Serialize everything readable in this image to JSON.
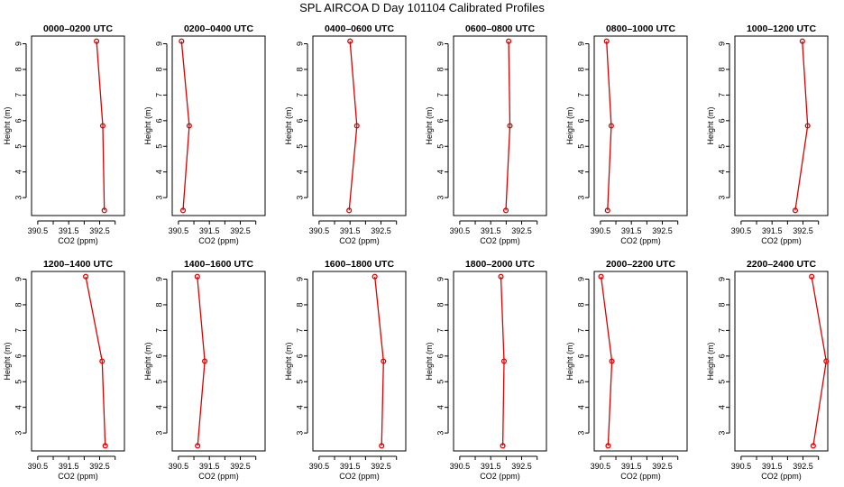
{
  "title": "SPL AIRCOA D  Day 101104  Calibrated Profiles",
  "chart_data": {
    "type": "line",
    "xlabel": "CO2 (ppm)",
    "ylabel": "Height (m)",
    "xlim": [
      390.3,
      393.3
    ],
    "ylim": [
      2.3,
      9.3
    ],
    "xticks": [
      390.5,
      391.0,
      391.5,
      392.0,
      392.5,
      393.0
    ],
    "xtick_labels": [
      "390.5",
      "391.5",
      "392.5"
    ],
    "yticks": [
      3,
      4,
      5,
      6,
      7,
      8,
      9
    ],
    "heights": [
      9.1,
      5.8,
      2.5
    ],
    "line_color": "#dd0000",
    "panels": [
      {
        "title": "0000–0200 UTC",
        "co2": [
          392.4,
          392.6,
          392.65
        ]
      },
      {
        "title": "0200–0400 UTC",
        "co2": [
          390.6,
          390.85,
          390.65
        ]
      },
      {
        "title": "0400–0600 UTC",
        "co2": [
          391.5,
          391.72,
          391.47
        ]
      },
      {
        "title": "0600–0800 UTC",
        "co2": [
          392.08,
          392.12,
          391.99
        ]
      },
      {
        "title": "0800–1000 UTC",
        "co2": [
          390.7,
          390.85,
          390.73
        ]
      },
      {
        "title": "1000–1200 UTC",
        "co2": [
          392.48,
          392.65,
          392.25
        ]
      },
      {
        "title": "1200–1400 UTC",
        "co2": [
          392.05,
          392.58,
          392.68
        ]
      },
      {
        "title": "1400–1600 UTC",
        "co2": [
          391.11,
          391.35,
          391.12
        ]
      },
      {
        "title": "1600–1800 UTC",
        "co2": [
          392.3,
          392.58,
          392.52
        ]
      },
      {
        "title": "1800–2000 UTC",
        "co2": [
          391.83,
          391.93,
          391.89
        ]
      },
      {
        "title": "2000–2200 UTC",
        "co2": [
          390.52,
          390.87,
          390.75
        ]
      },
      {
        "title": "2200–2400 UTC",
        "co2": [
          392.78,
          393.25,
          392.83
        ]
      }
    ]
  }
}
